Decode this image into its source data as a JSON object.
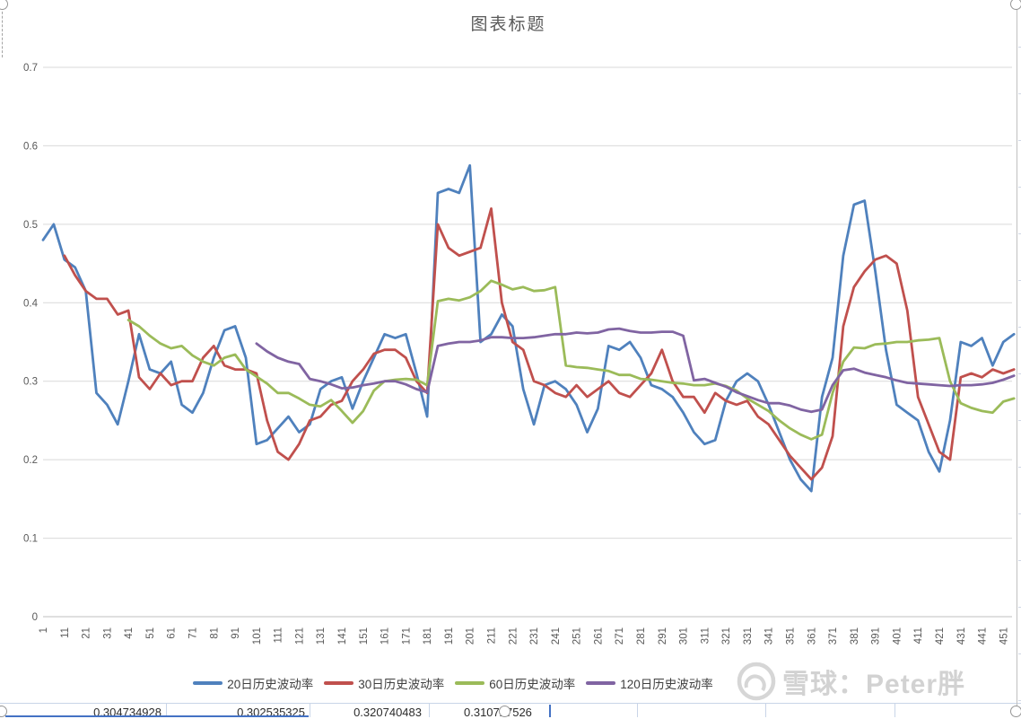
{
  "title": "图表标题",
  "chart_data": {
    "type": "line",
    "title": "图表标题",
    "xlabel": "",
    "ylabel": "",
    "grid": "horizontal",
    "legend_position": "bottom",
    "sample_step": 5,
    "x_axis": {
      "index_range": [
        1,
        456
      ],
      "tick_labels": [
        1,
        11,
        21,
        31,
        41,
        51,
        61,
        71,
        81,
        91,
        101,
        111,
        121,
        131,
        141,
        151,
        161,
        171,
        181,
        191,
        201,
        211,
        221,
        231,
        241,
        251,
        261,
        271,
        281,
        291,
        301,
        311,
        321,
        331,
        341,
        351,
        361,
        371,
        381,
        391,
        401,
        411,
        421,
        431,
        441,
        451
      ]
    },
    "y_axis": {
      "range": [
        0,
        0.7
      ],
      "tick_values": [
        0,
        0.1,
        0.2,
        0.3,
        0.4,
        0.5,
        0.6,
        0.7
      ],
      "tick_labels": [
        "0",
        "0.1",
        "0.2",
        "0.3",
        "0.4",
        "0.5",
        "0.6",
        "0.7"
      ]
    },
    "series": [
      {
        "name": "20日历史波动率",
        "color": "#4F81BD",
        "start_index": 1,
        "values": [
          0.48,
          0.5,
          0.455,
          0.445,
          0.415,
          0.285,
          0.27,
          0.245,
          0.3,
          0.36,
          0.315,
          0.31,
          0.325,
          0.27,
          0.26,
          0.285,
          0.33,
          0.365,
          0.37,
          0.33,
          0.22,
          0.225,
          0.24,
          0.255,
          0.235,
          0.245,
          0.29,
          0.3,
          0.305,
          0.265,
          0.3,
          0.33,
          0.36,
          0.355,
          0.36,
          0.31,
          0.255,
          0.54,
          0.545,
          0.54,
          0.575,
          0.35,
          0.36,
          0.385,
          0.37,
          0.29,
          0.245,
          0.295,
          0.3,
          0.29,
          0.27,
          0.235,
          0.265,
          0.345,
          0.34,
          0.35,
          0.33,
          0.295,
          0.29,
          0.28,
          0.26,
          0.235,
          0.22,
          0.225,
          0.275,
          0.3,
          0.31,
          0.3,
          0.27,
          0.235,
          0.2,
          0.175,
          0.16,
          0.28,
          0.33,
          0.46,
          0.525,
          0.53,
          0.44,
          0.34,
          0.27,
          0.26,
          0.25,
          0.21,
          0.185,
          0.25,
          0.35,
          0.345,
          0.355,
          0.32,
          0.35,
          0.36
        ]
      },
      {
        "name": "30日历史波动率",
        "color": "#C0504D",
        "start_index": 11,
        "values": [
          0.46,
          0.435,
          0.415,
          0.405,
          0.405,
          0.385,
          0.39,
          0.305,
          0.29,
          0.31,
          0.295,
          0.3,
          0.3,
          0.33,
          0.345,
          0.32,
          0.315,
          0.315,
          0.31,
          0.25,
          0.21,
          0.2,
          0.22,
          0.25,
          0.255,
          0.27,
          0.275,
          0.3,
          0.315,
          0.335,
          0.34,
          0.34,
          0.33,
          0.3,
          0.285,
          0.5,
          0.47,
          0.46,
          0.465,
          0.47,
          0.52,
          0.4,
          0.35,
          0.34,
          0.3,
          0.295,
          0.285,
          0.28,
          0.295,
          0.28,
          0.29,
          0.3,
          0.285,
          0.28,
          0.295,
          0.31,
          0.34,
          0.3,
          0.28,
          0.28,
          0.26,
          0.285,
          0.275,
          0.27,
          0.275,
          0.255,
          0.245,
          0.225,
          0.205,
          0.19,
          0.175,
          0.19,
          0.23,
          0.37,
          0.42,
          0.44,
          0.455,
          0.46,
          0.45,
          0.39,
          0.28,
          0.245,
          0.21,
          0.2,
          0.305,
          0.31,
          0.305,
          0.315,
          0.31,
          0.315
        ]
      },
      {
        "name": "60日历史波动率",
        "color": "#9BBB59",
        "start_index": 41,
        "values": [
          0.378,
          0.37,
          0.358,
          0.348,
          0.342,
          0.345,
          0.333,
          0.325,
          0.32,
          0.33,
          0.334,
          0.315,
          0.306,
          0.297,
          0.285,
          0.285,
          0.278,
          0.27,
          0.268,
          0.276,
          0.262,
          0.247,
          0.262,
          0.288,
          0.3,
          0.302,
          0.303,
          0.302,
          0.295,
          0.402,
          0.405,
          0.403,
          0.407,
          0.415,
          0.428,
          0.423,
          0.417,
          0.42,
          0.415,
          0.416,
          0.42,
          0.32,
          0.318,
          0.317,
          0.315,
          0.313,
          0.308,
          0.308,
          0.303,
          0.302,
          0.3,
          0.298,
          0.297,
          0.295,
          0.295,
          0.297,
          0.294,
          0.288,
          0.278,
          0.27,
          0.262,
          0.25,
          0.24,
          0.232,
          0.226,
          0.232,
          0.285,
          0.325,
          0.343,
          0.342,
          0.347,
          0.348,
          0.35,
          0.35,
          0.352,
          0.353,
          0.355,
          0.3,
          0.272,
          0.266,
          0.262,
          0.26,
          0.274,
          0.278
        ]
      },
      {
        "name": "120日历史波动率",
        "color": "#8064A2",
        "start_index": 101,
        "values": [
          0.348,
          0.338,
          0.33,
          0.325,
          0.322,
          0.303,
          0.3,
          0.296,
          0.291,
          0.292,
          0.295,
          0.297,
          0.3,
          0.3,
          0.296,
          0.29,
          0.286,
          0.345,
          0.348,
          0.35,
          0.35,
          0.352,
          0.356,
          0.356,
          0.355,
          0.355,
          0.356,
          0.358,
          0.36,
          0.36,
          0.362,
          0.361,
          0.362,
          0.366,
          0.367,
          0.364,
          0.362,
          0.362,
          0.363,
          0.363,
          0.358,
          0.301,
          0.303,
          0.298,
          0.293,
          0.286,
          0.281,
          0.276,
          0.272,
          0.272,
          0.269,
          0.264,
          0.261,
          0.264,
          0.295,
          0.314,
          0.316,
          0.311,
          0.308,
          0.305,
          0.301,
          0.298,
          0.297,
          0.296,
          0.295,
          0.294,
          0.295,
          0.295,
          0.296,
          0.298,
          0.302,
          0.307
        ]
      }
    ]
  },
  "legend": {
    "items": [
      {
        "label": "20日历史波动率",
        "color": "#4F81BD"
      },
      {
        "label": "30日历史波动率",
        "color": "#C0504D"
      },
      {
        "label": "60日历史波动率",
        "color": "#9BBB59"
      },
      {
        "label": "120日历史波动率",
        "color": "#8064A2"
      }
    ]
  },
  "watermark": {
    "text": "雪球：Peter胖"
  },
  "worksheet": {
    "cells": [
      {
        "value": "0.304734928"
      },
      {
        "value": "0.302535325"
      },
      {
        "value": "0.320740483"
      },
      {
        "value": "0.310727526"
      }
    ]
  }
}
